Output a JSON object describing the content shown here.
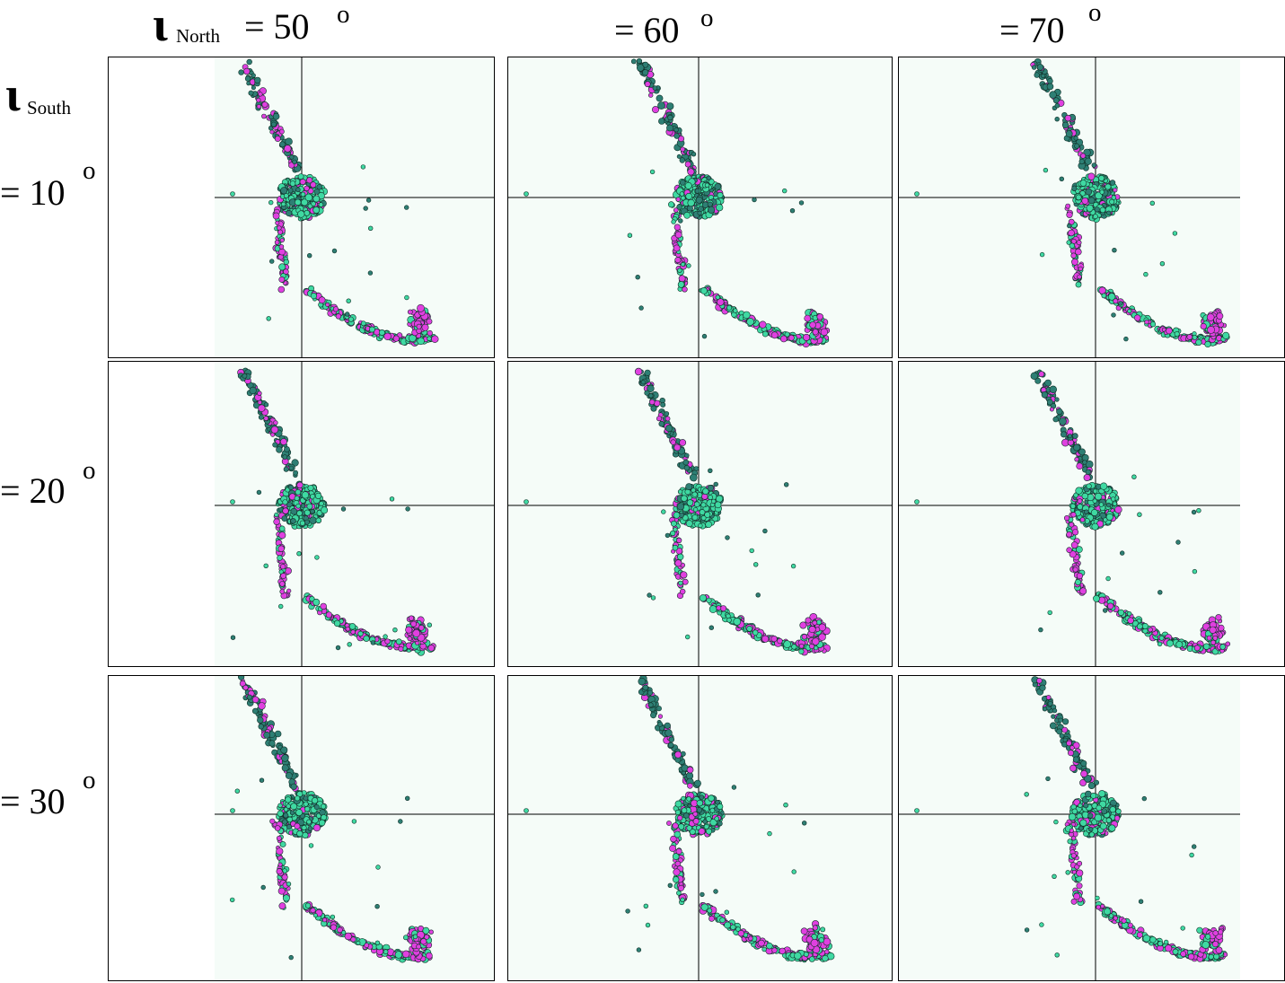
{
  "header": {
    "col_symbol": "ι",
    "col_sub": "North",
    "col_values": [
      "= 50",
      "= 60",
      "= 70"
    ],
    "row_symbol": "ι",
    "row_sub": "South",
    "row_values": [
      "= 10",
      "= 20",
      "= 30"
    ],
    "degree_mark": "o"
  },
  "colors": {
    "magenta": "#e040e0",
    "teal": "#2e7f74",
    "aqua": "#3fd9a2",
    "panel_bg": "#f5fcf8"
  },
  "chart_data": {
    "type": "scatter",
    "grid": "3x3 panels",
    "rows_param": "ι South",
    "cols_param": "ι North",
    "xlim": [
      -1,
      1
    ],
    "ylim": [
      -1,
      1
    ],
    "crosshair": [
      0,
      0
    ],
    "series": [
      {
        "name": "",
        "color": "#e040e0"
      },
      {
        "name": "",
        "color": "#2e7f74"
      },
      {
        "name": "",
        "color": "#3fd9a2"
      }
    ],
    "panels": [
      {
        "row": 0,
        "col": 0,
        "north": 50,
        "south": 10
      },
      {
        "row": 0,
        "col": 1,
        "north": 60,
        "south": 10
      },
      {
        "row": 0,
        "col": 2,
        "north": 70,
        "south": 10
      },
      {
        "row": 1,
        "col": 0,
        "north": 50,
        "south": 20
      },
      {
        "row": 1,
        "col": 1,
        "north": 60,
        "south": 20
      },
      {
        "row": 1,
        "col": 2,
        "north": 70,
        "south": 20
      },
      {
        "row": 2,
        "col": 0,
        "north": 50,
        "south": 30
      },
      {
        "row": 2,
        "col": 1,
        "north": 60,
        "south": 30
      },
      {
        "row": 2,
        "col": 2,
        "north": 70,
        "south": 30
      }
    ]
  }
}
